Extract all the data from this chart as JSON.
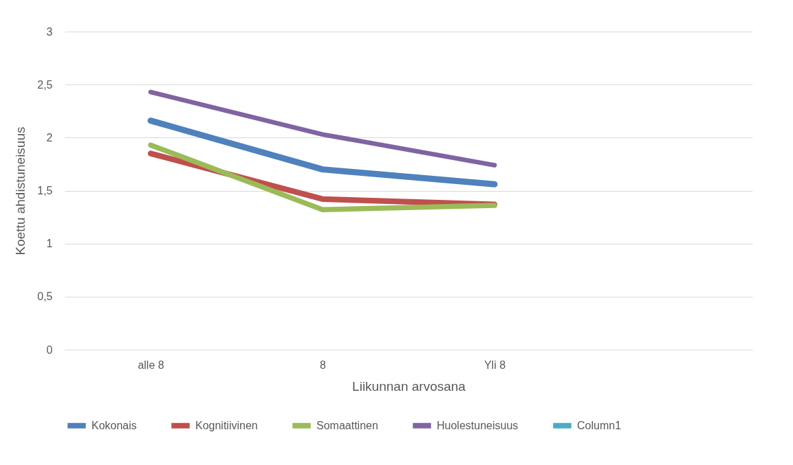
{
  "chart_data": {
    "type": "line",
    "xlabel": "Liikunnan arvosana",
    "ylabel": "Koettu ahdistuneisuus",
    "categories": [
      "alle 8",
      "8",
      "Yli 8",
      null
    ],
    "series": [
      {
        "name": "Kokonais",
        "color": "#4f81bd",
        "values": [
          2.16,
          1.7,
          1.56,
          null
        ]
      },
      {
        "name": "Kognitiivinen",
        "color": "#c0504d",
        "values": [
          1.85,
          1.42,
          1.37,
          null
        ]
      },
      {
        "name": "Somaattinen",
        "color": "#9bbb59",
        "values": [
          1.93,
          1.32,
          1.36,
          null
        ]
      },
      {
        "name": "Huolestuneisuus",
        "color": "#8064a2",
        "values": [
          2.43,
          2.03,
          1.74,
          null
        ]
      },
      {
        "name": "Column1",
        "color": "#4bacc6",
        "values": [
          null,
          null,
          null,
          null
        ]
      }
    ],
    "ylim": [
      0,
      3
    ],
    "yticks": [
      0,
      {
        "value": 0.5,
        "label": "0,5"
      },
      1,
      {
        "value": 1.5,
        "label": "1,5"
      },
      2,
      {
        "value": 2.5,
        "label": "2,5"
      },
      3
    ],
    "grid": "y",
    "legend": "bottom",
    "marker": "none",
    "line_style": "solid"
  }
}
